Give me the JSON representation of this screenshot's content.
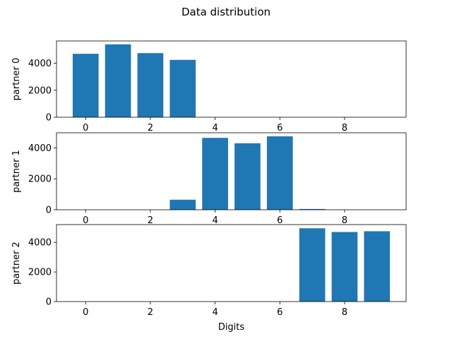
{
  "chart_data": {
    "type": "bar",
    "title": "Data distribution",
    "xlabel": "Digits",
    "bar_color": "#1f77b4",
    "x_ticks": [
      0,
      2,
      4,
      6,
      8
    ],
    "xlim": [
      -0.9,
      9.9
    ],
    "subplots": [
      {
        "ylabel": "partner 0",
        "ylim": [
          0,
          5650
        ],
        "y_ticks": [
          0,
          2000,
          4000
        ],
        "x": [
          0,
          1,
          2,
          3,
          4,
          5,
          6,
          7,
          8,
          9
        ],
        "values": [
          4700,
          5400,
          4750,
          4250,
          0,
          0,
          0,
          0,
          0,
          0
        ]
      },
      {
        "ylabel": "partner 1",
        "ylim": [
          0,
          4980
        ],
        "y_ticks": [
          0,
          2000,
          4000
        ],
        "x": [
          0,
          1,
          2,
          3,
          4,
          5,
          6,
          7,
          8,
          9
        ],
        "values": [
          0,
          0,
          0,
          650,
          4650,
          4300,
          4750,
          50,
          0,
          0
        ]
      },
      {
        "ylabel": "partner 2",
        "ylim": [
          0,
          5200
        ],
        "y_ticks": [
          0,
          2000,
          4000
        ],
        "x": [
          0,
          1,
          2,
          3,
          4,
          5,
          6,
          7,
          8,
          9
        ],
        "values": [
          0,
          0,
          0,
          0,
          0,
          0,
          0,
          4950,
          4700,
          4750
        ]
      }
    ]
  }
}
